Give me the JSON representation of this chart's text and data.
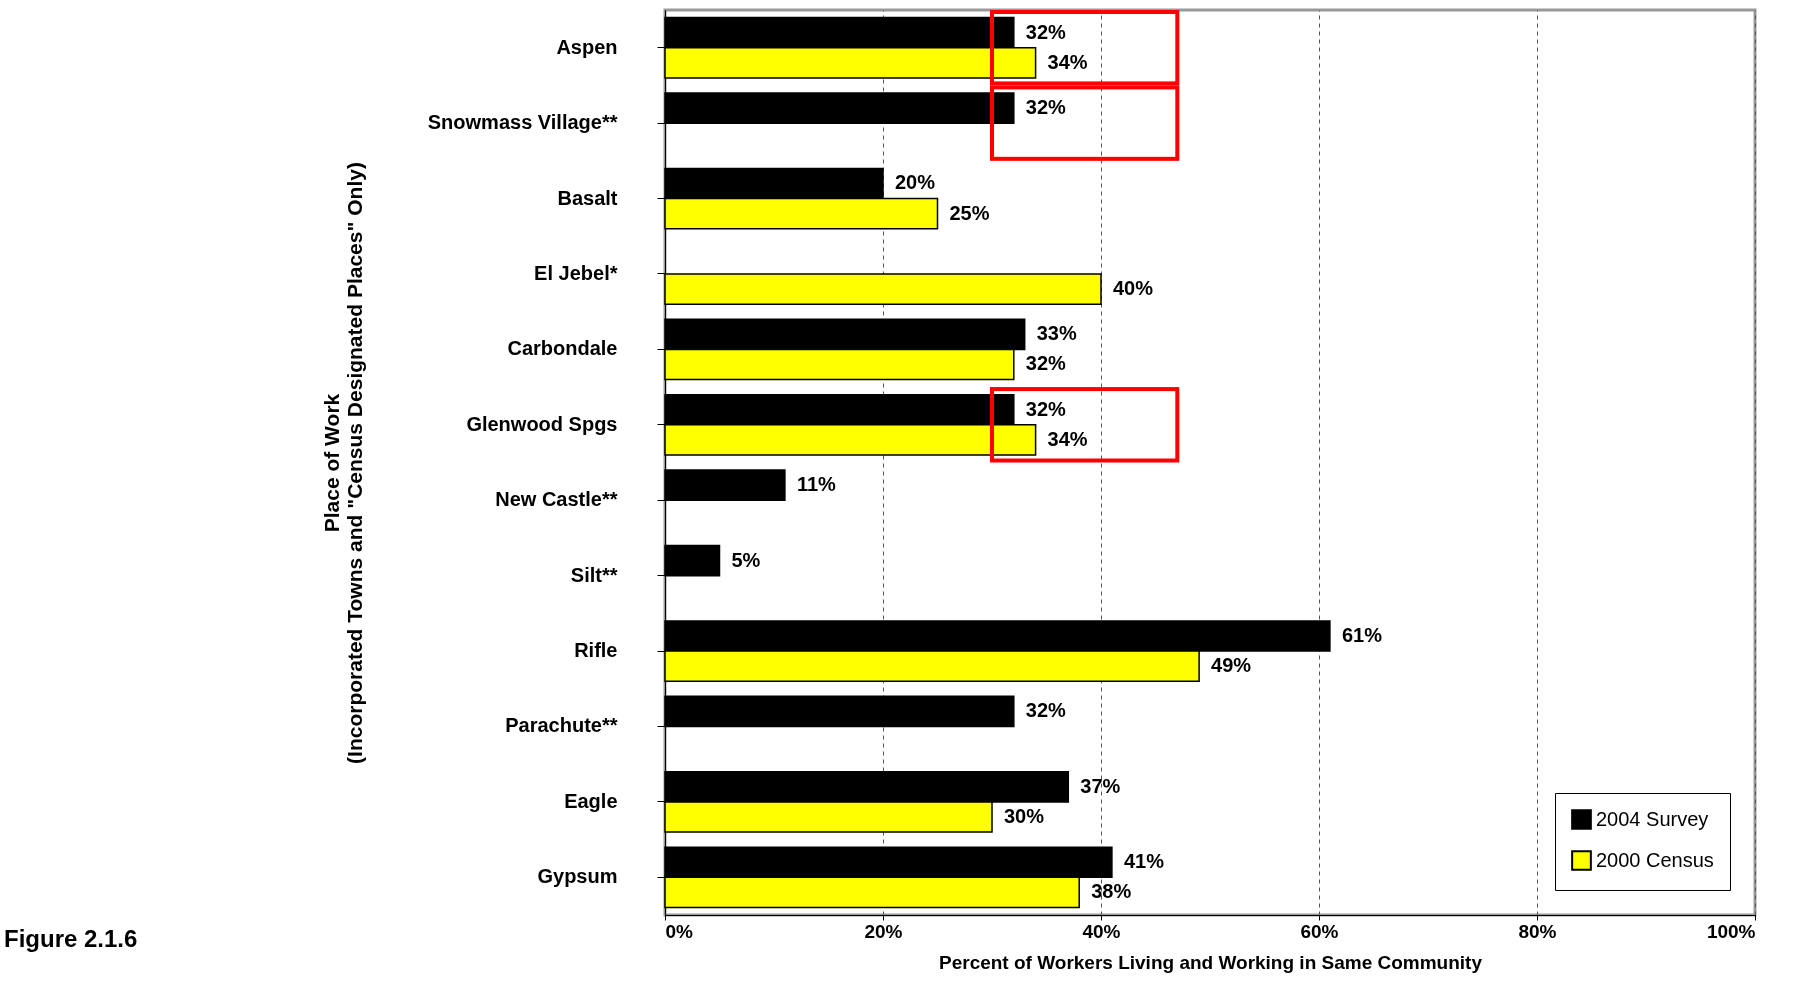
{
  "chart_data": {
    "type": "bar",
    "orientation": "horizontal",
    "xlabel": "Percent of Workers Living and Working in Same Community",
    "ylabel": "Place of Work\n(Incorporated Towns and \"Census Designated Places\" Only)",
    "categories": [
      "Aspen",
      "Snowmass Village**",
      "Basalt",
      "El Jebel*",
      "Carbondale",
      "Glenwood Spgs",
      "New Castle**",
      "Silt**",
      "Rifle",
      "Parachute**",
      "Eagle",
      "Gypsum"
    ],
    "series": [
      {
        "name": "2004 Survey",
        "color": "#000000",
        "values": [
          32,
          32,
          20,
          null,
          33,
          32,
          11,
          5,
          61,
          32,
          37,
          41
        ],
        "value_labels": [
          "32%",
          "32%",
          "20%",
          null,
          "33%",
          "32%",
          "11%",
          "5%",
          "61%",
          "32%",
          "37%",
          "41%"
        ]
      },
      {
        "name": "2000 Census",
        "color": "#ffff00",
        "values": [
          34,
          null,
          25,
          40,
          32,
          34,
          null,
          null,
          49,
          null,
          30,
          38
        ],
        "value_labels": [
          "34%",
          null,
          "25%",
          "40%",
          "32%",
          "34%",
          null,
          null,
          "49%",
          null,
          "30%",
          "38%"
        ]
      }
    ],
    "xlim": [
      0,
      100
    ],
    "xticks": [
      {
        "value": 0,
        "label": "0%"
      },
      {
        "value": 20,
        "label": "20%"
      },
      {
        "value": 40,
        "label": "40%"
      },
      {
        "value": 60,
        "label": "60%"
      },
      {
        "value": 80,
        "label": "80%"
      },
      {
        "value": 100,
        "label": "100%"
      }
    ],
    "grid": "x",
    "legend": "bottom right",
    "annotations": [
      "Figure 2.1.6"
    ]
  }
}
